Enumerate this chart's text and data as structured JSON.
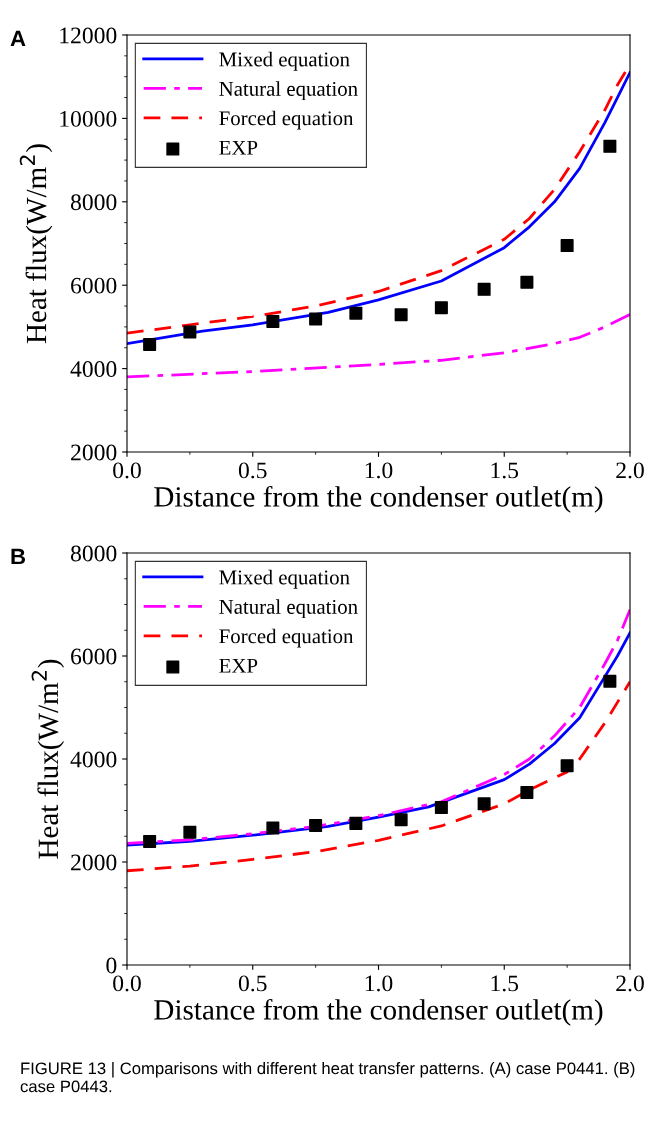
{
  "chart_data": [
    {
      "type": "line",
      "annotations": [
        "A"
      ],
      "xlabel": "Distance from the condenser outlet(m)",
      "ylabel": "Heat flux(W/m$^{2}$)",
      "xlim": [
        0,
        2
      ],
      "xticks": [
        {
          "value": 0,
          "label": "0.0"
        },
        {
          "value": 0.5,
          "label": "0.5"
        },
        {
          "value": 1,
          "label": "1.0"
        },
        {
          "value": 1.5,
          "label": "1.5"
        },
        {
          "value": 2,
          "label": "2.0"
        }
      ],
      "ylim": [
        2000,
        12000
      ],
      "yticks": [
        2000,
        4000,
        6000,
        8000,
        10000,
        12000
      ],
      "legend": "top left",
      "grid": false,
      "series": [
        {
          "name": "Mixed equation",
          "color": "#0000ff",
          "line_style": "solid",
          "x": [
            0,
            0.3,
            0.5,
            0.8,
            1.0,
            1.25,
            1.5,
            1.6,
            1.7,
            1.8,
            1.9,
            1.95,
            2.0
          ],
          "values": [
            4600,
            4900,
            5050,
            5350,
            5650,
            6100,
            6900,
            7400,
            8000,
            8800,
            9900,
            10500,
            11100
          ]
        },
        {
          "name": "Natural equation",
          "color": "#ff00ff",
          "line_style": "dashdot",
          "x": [
            0,
            0.5,
            1.0,
            1.25,
            1.5,
            1.7,
            1.8,
            1.9,
            2.0
          ],
          "values": [
            3800,
            3930,
            4100,
            4200,
            4380,
            4600,
            4750,
            5000,
            5300
          ]
        },
        {
          "name": "Forced equation",
          "color": "#ff0000",
          "line_style": "dashed",
          "x": [
            0,
            0.25,
            0.5,
            0.75,
            1.0,
            1.25,
            1.5,
            1.6,
            1.7,
            1.8,
            1.9,
            1.95,
            1.99
          ],
          "values": [
            4850,
            5050,
            5250,
            5500,
            5850,
            6350,
            7100,
            7600,
            8300,
            9200,
            10200,
            10800,
            11200
          ]
        },
        {
          "name": "EXP",
          "type": "scatter",
          "marker": "square",
          "color": "#000000",
          "x": [
            0.09,
            0.25,
            0.58,
            0.75,
            0.91,
            1.09,
            1.25,
            1.42,
            1.59,
            1.75,
            1.92
          ],
          "values": [
            4580,
            4880,
            5130,
            5190,
            5330,
            5290,
            5460,
            5900,
            6070,
            6950,
            9330
          ]
        }
      ]
    },
    {
      "type": "line",
      "annotations": [
        "B",
        "FIGURE 13 | Comparisons with different heat transfer patterns. (A) case P0441. (B) case P0443."
      ],
      "xlabel": "Distance from the condenser outlet(m)",
      "ylabel": "Heat flux(W/m$^{2}$)",
      "xlim": [
        0,
        2
      ],
      "xticks": [
        {
          "value": 0,
          "label": "0.0"
        },
        {
          "value": 0.5,
          "label": "0.5"
        },
        {
          "value": 1,
          "label": "1.0"
        },
        {
          "value": 1.5,
          "label": "1.5"
        },
        {
          "value": 2,
          "label": "2.0"
        }
      ],
      "ylim": [
        0,
        8000
      ],
      "yticks": [
        0,
        2000,
        4000,
        6000,
        8000
      ],
      "legend": "top left",
      "grid": false,
      "series": [
        {
          "name": "Mixed equation",
          "color": "#0000ff",
          "line_style": "solid",
          "x": [
            0,
            0.25,
            0.5,
            0.8,
            1.0,
            1.2,
            1.5,
            1.6,
            1.7,
            1.8,
            1.9,
            1.95,
            2.0
          ],
          "values": [
            2330,
            2400,
            2520,
            2690,
            2870,
            3070,
            3600,
            3900,
            4300,
            4800,
            5600,
            6000,
            6450
          ]
        },
        {
          "name": "Natural equation",
          "color": "#ff00ff",
          "line_style": "dashdot",
          "x": [
            0,
            0.25,
            0.5,
            0.75,
            1.0,
            1.25,
            1.5,
            1.6,
            1.7,
            1.8,
            1.9,
            1.95,
            2.0
          ],
          "values": [
            2360,
            2430,
            2550,
            2690,
            2900,
            3170,
            3700,
            4000,
            4450,
            5000,
            5850,
            6300,
            6900
          ]
        },
        {
          "name": "Forced equation",
          "color": "#ff0000",
          "line_style": "dashed",
          "x": [
            0,
            0.25,
            0.5,
            0.75,
            1.0,
            1.25,
            1.5,
            1.6,
            1.75,
            1.8,
            1.9,
            1.95,
            2.0
          ],
          "values": [
            1830,
            1920,
            2050,
            2200,
            2420,
            2700,
            3130,
            3400,
            3750,
            4000,
            4700,
            5100,
            5500
          ]
        },
        {
          "name": "EXP",
          "type": "scatter",
          "marker": "square",
          "color": "#000000",
          "x": [
            0.09,
            0.25,
            0.58,
            0.75,
            0.91,
            1.09,
            1.25,
            1.42,
            1.59,
            1.75,
            1.92
          ],
          "values": [
            2400,
            2580,
            2660,
            2710,
            2750,
            2820,
            3060,
            3130,
            3350,
            3870,
            5510
          ]
        }
      ]
    }
  ]
}
